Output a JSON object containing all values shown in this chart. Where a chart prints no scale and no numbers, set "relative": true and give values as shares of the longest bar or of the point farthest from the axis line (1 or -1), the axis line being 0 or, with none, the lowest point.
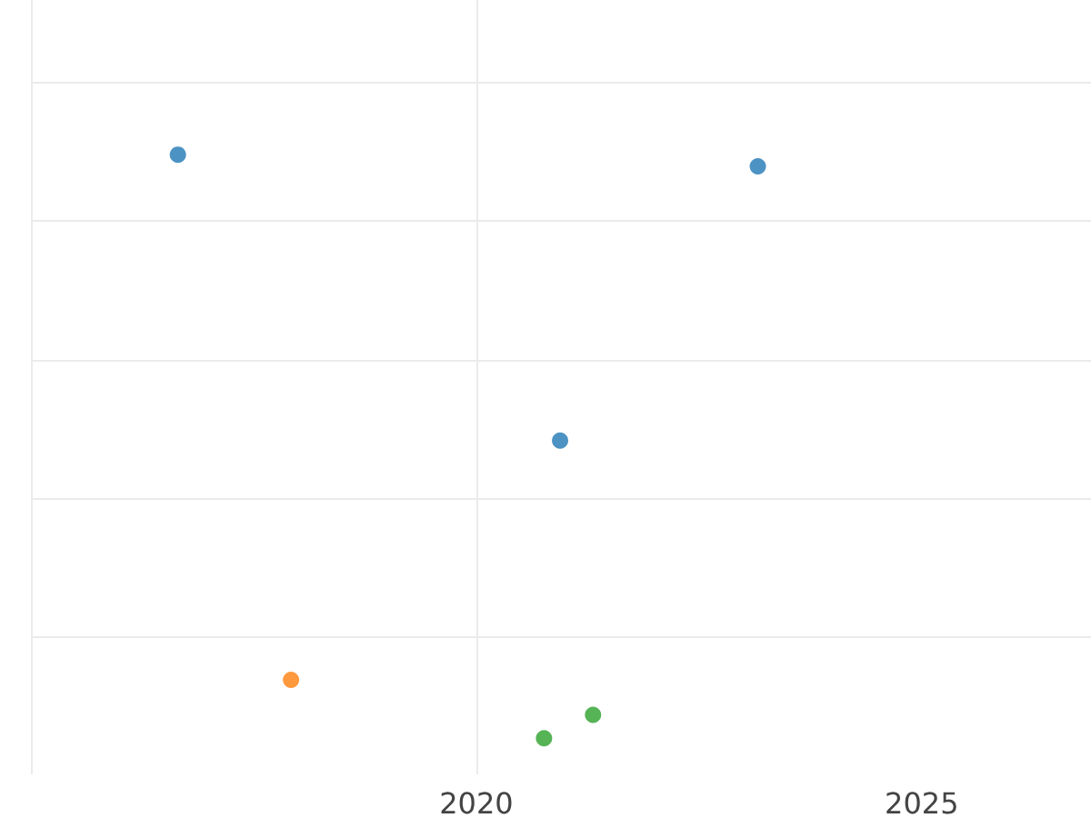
{
  "chart_data": {
    "type": "scatter",
    "relative": true,
    "xlim": [
      2015,
      2026.9
    ],
    "xticks": [
      {
        "value": 2015,
        "label": null
      },
      2020,
      2025
    ],
    "grid": true,
    "marker": "circle",
    "series": [
      {
        "color": "#1f77b4",
        "x": [
          2016.65,
          2023.16,
          2020.94
        ],
        "values": [
          1,
          0.98,
          0.51
        ]
      },
      {
        "color": "#ff7f0e",
        "x": [
          2017.92
        ],
        "values": [
          0.1
        ]
      },
      {
        "color": "#2ca02c",
        "x": [
          2020.76,
          2021.31
        ],
        "values": [
          0,
          0.04
        ]
      }
    ]
  }
}
